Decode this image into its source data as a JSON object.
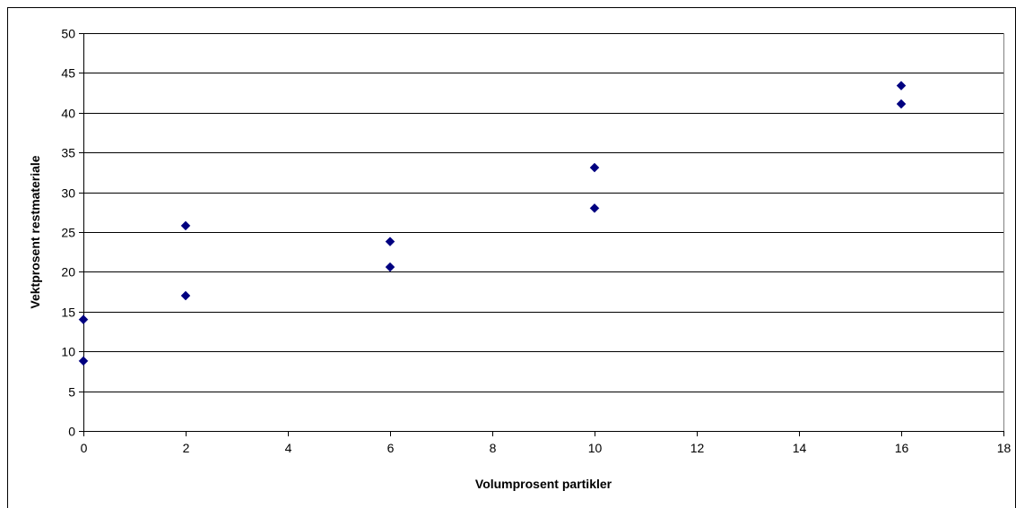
{
  "chart_data": {
    "type": "scatter",
    "title": "",
    "xlabel": "Volumprosent partikler",
    "ylabel": "Vektprosent restmateriale",
    "xlim": [
      0,
      18
    ],
    "ylim": [
      0,
      50
    ],
    "x_ticks": [
      "0",
      "2",
      "4",
      "6",
      "8",
      "10",
      "12",
      "14",
      "16",
      "18"
    ],
    "y_ticks": [
      "0",
      "5",
      "10",
      "15",
      "20",
      "25",
      "30",
      "35",
      "40",
      "45",
      "50"
    ],
    "grid": "horizontal",
    "legend": "none",
    "marker": "diamond",
    "marker_color": "#000080",
    "series": [
      {
        "points": [
          {
            "x": 0,
            "y": 14.0
          },
          {
            "x": 0,
            "y": 8.8
          },
          {
            "x": 2,
            "y": 25.8
          },
          {
            "x": 2,
            "y": 17.0
          },
          {
            "x": 6,
            "y": 23.8
          },
          {
            "x": 6,
            "y": 20.6
          },
          {
            "x": 10,
            "y": 33.1
          },
          {
            "x": 10,
            "y": 28.0
          },
          {
            "x": 16,
            "y": 43.4
          },
          {
            "x": 16,
            "y": 41.1
          }
        ]
      }
    ]
  }
}
